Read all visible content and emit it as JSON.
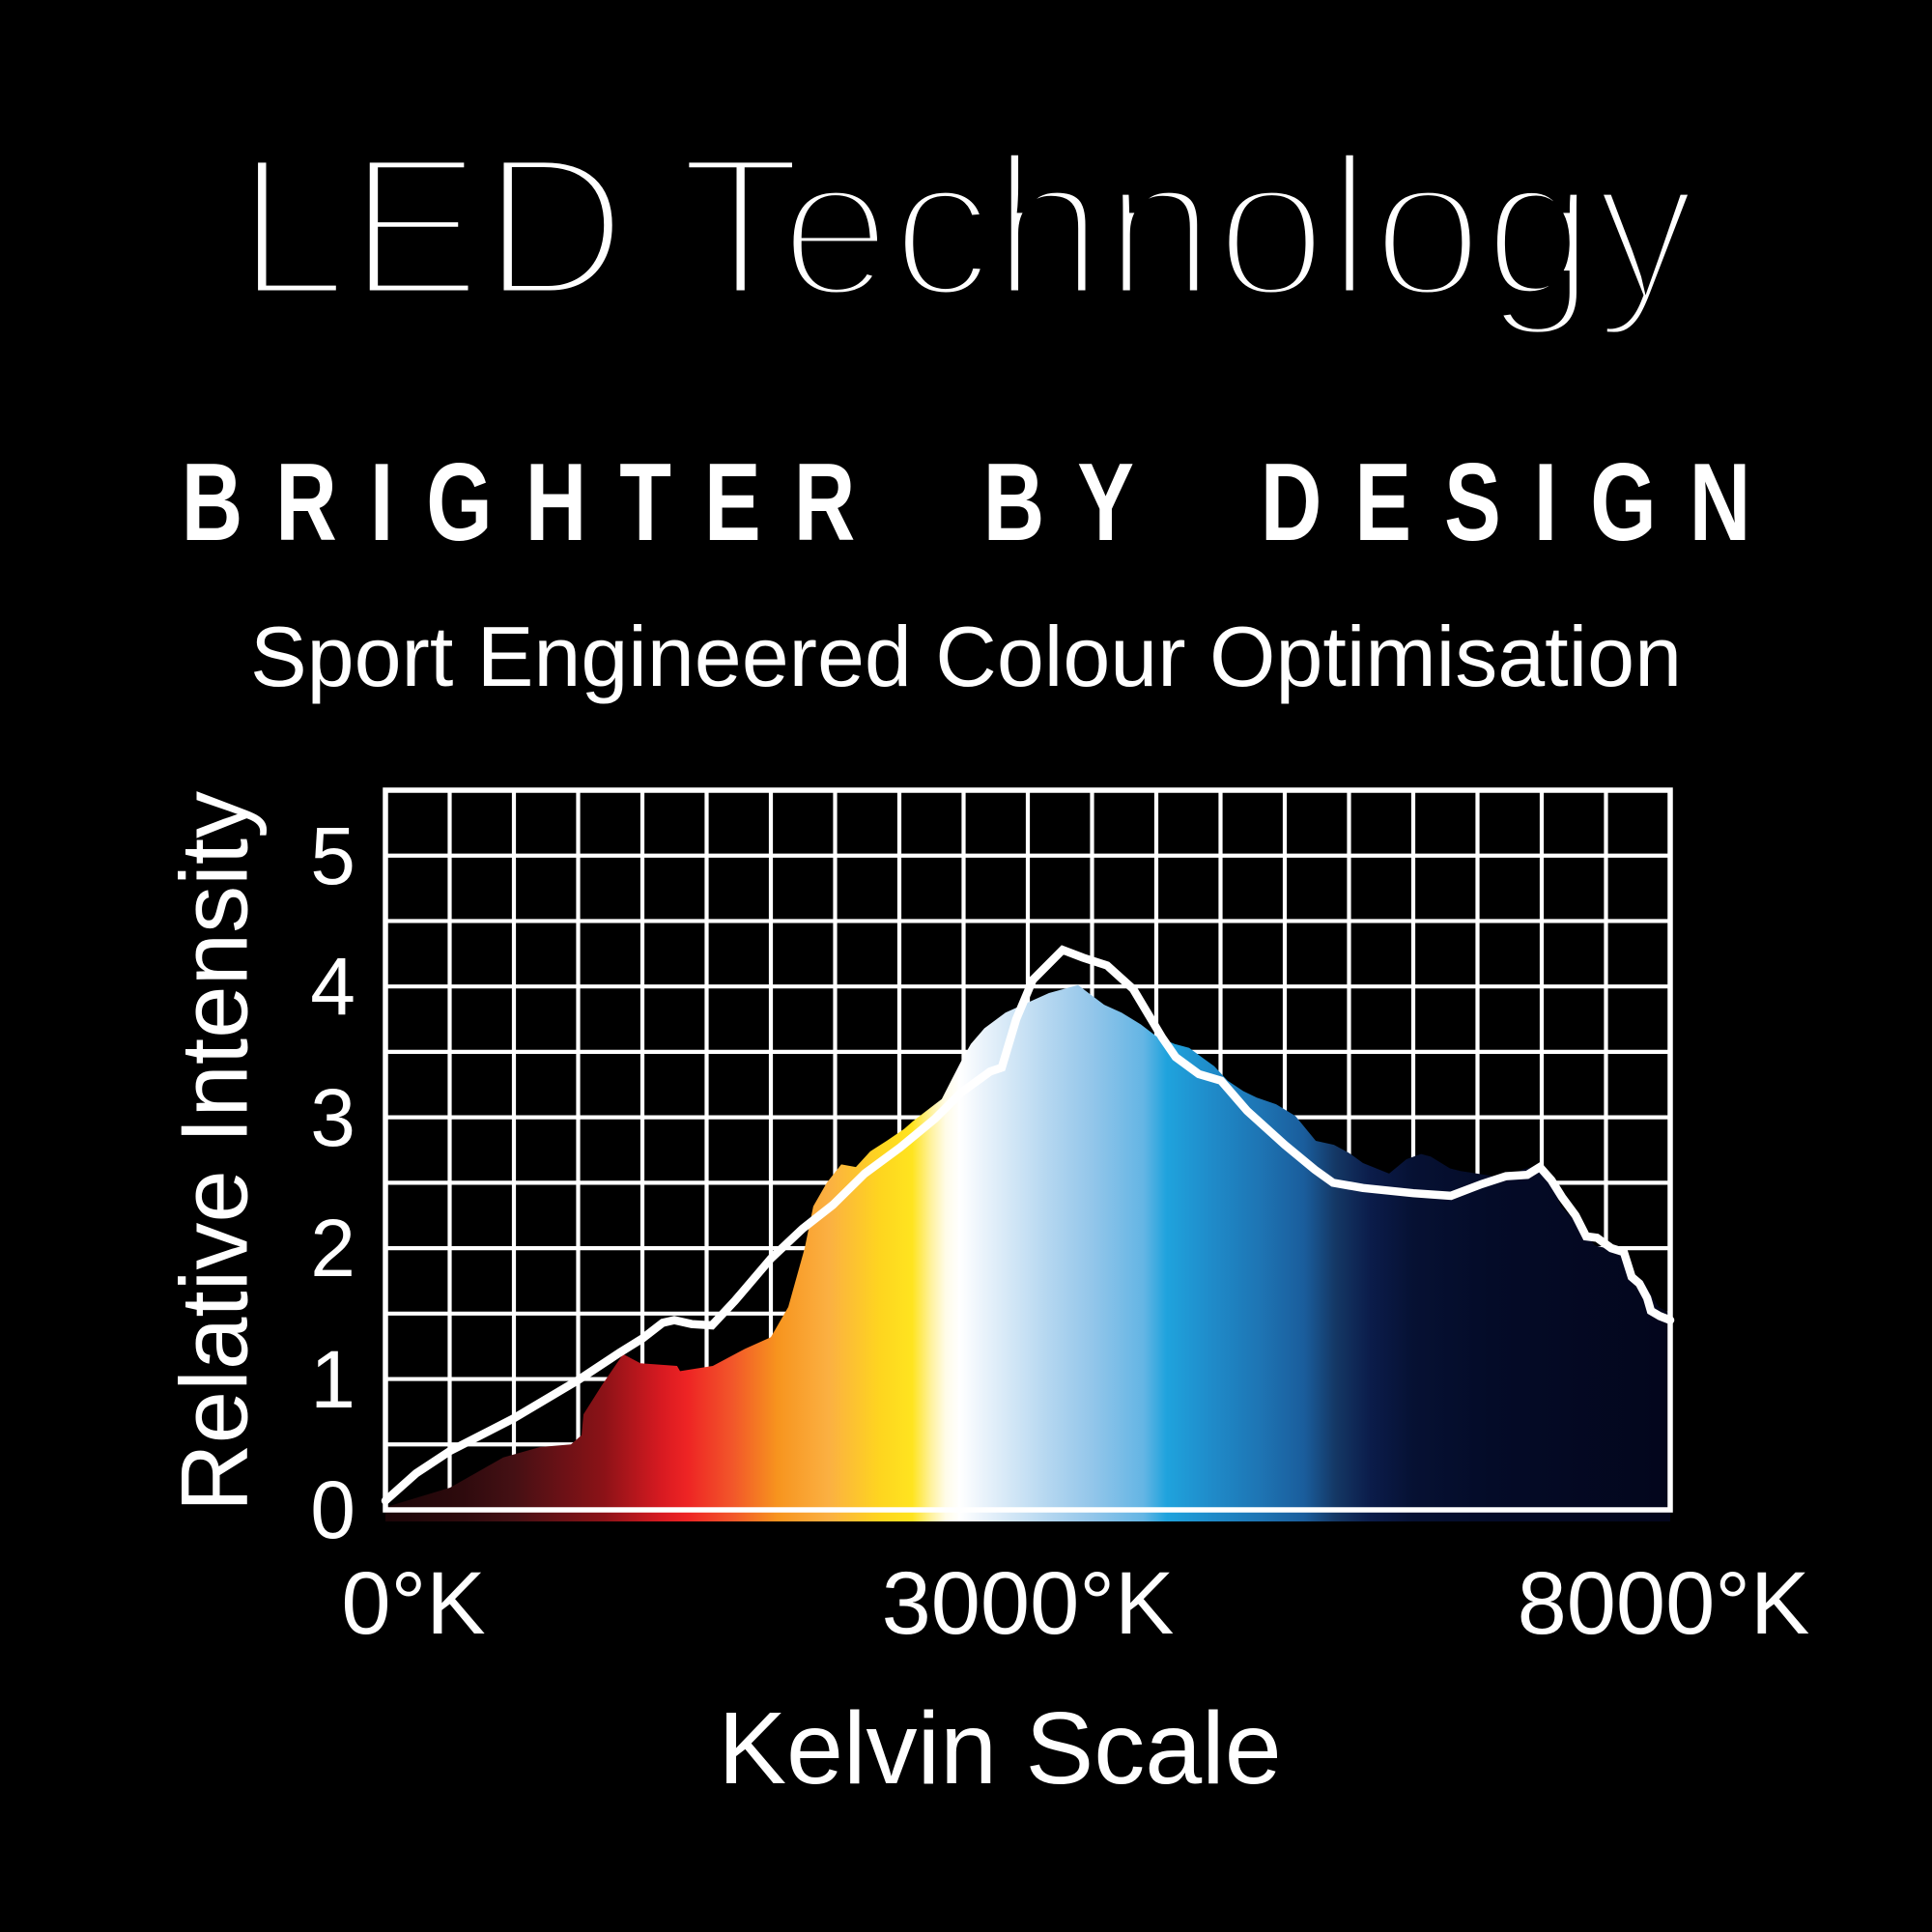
{
  "page": {
    "background": "#000000",
    "text_color": "#ffffff"
  },
  "header": {
    "title": "LED Technology",
    "tagline": "BRIGHTER BY DESIGN",
    "subtitle": "Sport Engineered Colour Optimisation"
  },
  "chart_data": {
    "type": "area",
    "title": "",
    "xlabel": "Kelvin Scale",
    "ylabel": "Relative Intensity",
    "x_unit": "°K",
    "x_scale": "piecewise linear: 0-3000°K spans left half of axis, 3000-8000°K spans right half",
    "xlim": [
      0,
      8000
    ],
    "ylim": [
      0,
      5.5
    ],
    "x_tick_labels": [
      "0°K",
      "3000°K",
      "8000°K"
    ],
    "x_tick_values": [
      0,
      3000,
      8000
    ],
    "y_tick_labels": [
      "0",
      "1",
      "2",
      "3",
      "4",
      "5"
    ],
    "y_tick_values": [
      0,
      1,
      2,
      3,
      4,
      5
    ],
    "grid": {
      "on": true,
      "x_divisions": 20,
      "y_divisions": 11,
      "color": "#ffffff"
    },
    "legend": {
      "visible": false
    },
    "series": [
      {
        "name": "spectrum-area",
        "type": "filled-area",
        "style": "area filled with horizontal spectral gradient (colour temperature)",
        "points": [
          [
            0,
            0.02
          ],
          [
            302,
            0.17
          ],
          [
            550,
            0.4
          ],
          [
            722,
            0.48
          ],
          [
            866,
            0.5
          ],
          [
            916,
            0.57
          ],
          [
            925,
            0.73
          ],
          [
            1010,
            0.95
          ],
          [
            1110,
            1.19
          ],
          [
            1191,
            1.12
          ],
          [
            1362,
            1.1
          ],
          [
            1376,
            1.06
          ],
          [
            1529,
            1.1
          ],
          [
            1678,
            1.23
          ],
          [
            1800,
            1.32
          ],
          [
            1881,
            1.55
          ],
          [
            1958,
            2.0
          ],
          [
            1998,
            2.32
          ],
          [
            2061,
            2.5
          ],
          [
            2129,
            2.64
          ],
          [
            2197,
            2.62
          ],
          [
            2264,
            2.74
          ],
          [
            2341,
            2.82
          ],
          [
            2422,
            2.91
          ],
          [
            2463,
            2.97
          ],
          [
            2535,
            3.06
          ],
          [
            2598,
            3.14
          ],
          [
            2648,
            3.3
          ],
          [
            2689,
            3.43
          ],
          [
            2734,
            3.56
          ],
          [
            2797,
            3.68
          ],
          [
            2896,
            3.8
          ],
          [
            2977,
            3.86
          ],
          [
            3165,
            3.95
          ],
          [
            3391,
            4.01
          ],
          [
            3594,
            3.86
          ],
          [
            3729,
            3.8
          ],
          [
            3797,
            3.76
          ],
          [
            3880,
            3.71
          ],
          [
            4000,
            3.62
          ],
          [
            4143,
            3.56
          ],
          [
            4256,
            3.53
          ],
          [
            4368,
            3.45
          ],
          [
            4451,
            3.39
          ],
          [
            4556,
            3.28
          ],
          [
            4677,
            3.2
          ],
          [
            4782,
            3.15
          ],
          [
            4932,
            3.1
          ],
          [
            5083,
            3.01
          ],
          [
            5241,
            2.82
          ],
          [
            5383,
            2.79
          ],
          [
            5496,
            2.73
          ],
          [
            5609,
            2.65
          ],
          [
            5812,
            2.57
          ],
          [
            5947,
            2.68
          ],
          [
            6060,
            2.72
          ],
          [
            6135,
            2.7
          ],
          [
            6286,
            2.61
          ],
          [
            6368,
            2.59
          ],
          [
            6496,
            2.57
          ],
          [
            6624,
            2.55
          ],
          [
            6737,
            2.54
          ],
          [
            6850,
            2.6
          ],
          [
            6962,
            2.63
          ],
          [
            7075,
            2.5
          ],
          [
            7150,
            2.32
          ],
          [
            7286,
            2.18
          ],
          [
            7414,
            2.02
          ],
          [
            7541,
            1.99
          ],
          [
            7662,
            1.93
          ],
          [
            7714,
            1.8
          ],
          [
            7789,
            1.75
          ],
          [
            7865,
            1.62
          ],
          [
            7910,
            1.55
          ],
          [
            8000,
            1.5
          ]
        ]
      },
      {
        "name": "intensity-line",
        "type": "line",
        "style": "white curve, ~8px stroke",
        "color": "#ffffff",
        "points": [
          [
            0,
            0.07
          ],
          [
            144,
            0.28
          ],
          [
            302,
            0.45
          ],
          [
            600,
            0.7
          ],
          [
            898,
            0.99
          ],
          [
            1092,
            1.2
          ],
          [
            1200,
            1.31
          ],
          [
            1295,
            1.43
          ],
          [
            1349,
            1.45
          ],
          [
            1430,
            1.42
          ],
          [
            1525,
            1.41
          ],
          [
            1633,
            1.6
          ],
          [
            1800,
            1.92
          ],
          [
            1949,
            2.15
          ],
          [
            2089,
            2.33
          ],
          [
            2238,
            2.57
          ],
          [
            2404,
            2.77
          ],
          [
            2567,
            2.99
          ],
          [
            2689,
            3.19
          ],
          [
            2824,
            3.35
          ],
          [
            2878,
            3.38
          ],
          [
            2946,
            3.75
          ],
          [
            3038,
            4.05
          ],
          [
            3271,
            4.28
          ],
          [
            3429,
            4.22
          ],
          [
            3617,
            4.16
          ],
          [
            3820,
            3.98
          ],
          [
            4045,
            3.61
          ],
          [
            4150,
            3.46
          ],
          [
            4331,
            3.33
          ],
          [
            4504,
            3.28
          ],
          [
            4707,
            3.05
          ],
          [
            5000,
            2.79
          ],
          [
            5233,
            2.6
          ],
          [
            5376,
            2.5
          ],
          [
            5609,
            2.46
          ],
          [
            6000,
            2.42
          ],
          [
            6293,
            2.4
          ],
          [
            6534,
            2.49
          ],
          [
            6722,
            2.55
          ],
          [
            6887,
            2.56
          ],
          [
            6985,
            2.62
          ],
          [
            7075,
            2.52
          ],
          [
            7158,
            2.39
          ],
          [
            7263,
            2.25
          ],
          [
            7346,
            2.09
          ],
          [
            7429,
            2.08
          ],
          [
            7541,
            2.0
          ],
          [
            7639,
            1.97
          ],
          [
            7700,
            1.78
          ],
          [
            7760,
            1.73
          ],
          [
            7820,
            1.62
          ],
          [
            7850,
            1.52
          ],
          [
            7920,
            1.48
          ],
          [
            8000,
            1.45
          ]
        ]
      }
    ],
    "gradient_stops": [
      {
        "pos": 0.0,
        "color": "#1B0507"
      },
      {
        "pos": 0.06,
        "color": "#2E0A0D"
      },
      {
        "pos": 0.1,
        "color": "#451014"
      },
      {
        "pos": 0.17,
        "color": "#8C1217"
      },
      {
        "pos": 0.215,
        "color": "#D81A21"
      },
      {
        "pos": 0.235,
        "color": "#EE2424"
      },
      {
        "pos": 0.27,
        "color": "#F2562A"
      },
      {
        "pos": 0.305,
        "color": "#F7941E"
      },
      {
        "pos": 0.345,
        "color": "#FBB042"
      },
      {
        "pos": 0.385,
        "color": "#FED51F"
      },
      {
        "pos": 0.41,
        "color": "#FFE41F"
      },
      {
        "pos": 0.425,
        "color": "#FFF2A0"
      },
      {
        "pos": 0.436,
        "color": "#FFFCE8"
      },
      {
        "pos": 0.447,
        "color": "#FFFFFF"
      },
      {
        "pos": 0.465,
        "color": "#EAF3FB"
      },
      {
        "pos": 0.515,
        "color": "#B5D7F0"
      },
      {
        "pos": 0.55,
        "color": "#93C6EA"
      },
      {
        "pos": 0.59,
        "color": "#64B5E4"
      },
      {
        "pos": 0.608,
        "color": "#1FA3DD"
      },
      {
        "pos": 0.64,
        "color": "#1F8DCB"
      },
      {
        "pos": 0.68,
        "color": "#1E75B4"
      },
      {
        "pos": 0.715,
        "color": "#1A5D9C"
      },
      {
        "pos": 0.74,
        "color": "#143764"
      },
      {
        "pos": 0.767,
        "color": "#0B1C4A"
      },
      {
        "pos": 0.8,
        "color": "#061133"
      },
      {
        "pos": 0.86,
        "color": "#040B28"
      },
      {
        "pos": 1.0,
        "color": "#03061C"
      }
    ],
    "plot_style": {
      "grid_stroke_width": 4.2,
      "border_stroke_width": 5.5,
      "line_stroke_width": 8.5,
      "grid_color": "#ffffff"
    }
  }
}
